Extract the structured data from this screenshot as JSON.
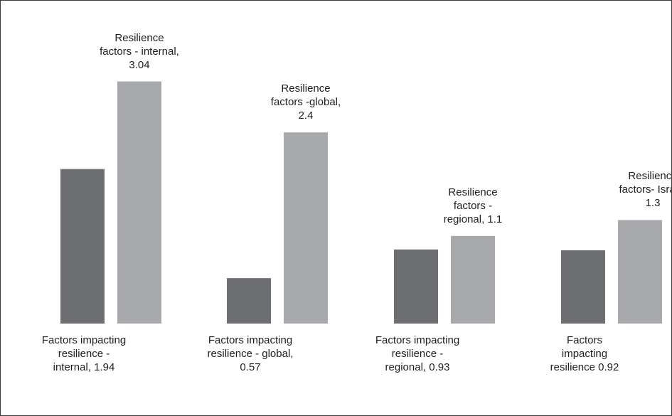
{
  "chart_data": {
    "type": "bar",
    "ylim": [
      0,
      3.4
    ],
    "groups": [
      {
        "factors_label": [
          "Factors impacting",
          "resilience -",
          "internal, 1.94"
        ],
        "factors_value": 1.94,
        "resilience_label": [
          "Resilience",
          "factors - internal,",
          "3.04"
        ],
        "resilience_value": 3.04
      },
      {
        "factors_label": [
          "Factors impacting",
          "resilience - global,",
          "0.57"
        ],
        "factors_value": 0.57,
        "resilience_label": [
          "Resilience",
          "factors -global,",
          "2.4"
        ],
        "resilience_value": 2.4
      },
      {
        "factors_label": [
          "Factors impacting",
          "resilience -",
          "regional, 0.93"
        ],
        "factors_value": 0.93,
        "resilience_label": [
          "Resilience",
          "factors -",
          "regional, 1.1"
        ],
        "resilience_value": 1.1
      },
      {
        "factors_label": [
          "Factors",
          "impacting",
          "resilience 0.92"
        ],
        "factors_value": 0.92,
        "resilience_label": [
          "Resilience",
          "factors- Israel,",
          "1.3"
        ],
        "resilience_value": 1.3
      }
    ],
    "colors": {
      "factors": "#6d6e71",
      "resilience": "#a7a9ac"
    }
  }
}
